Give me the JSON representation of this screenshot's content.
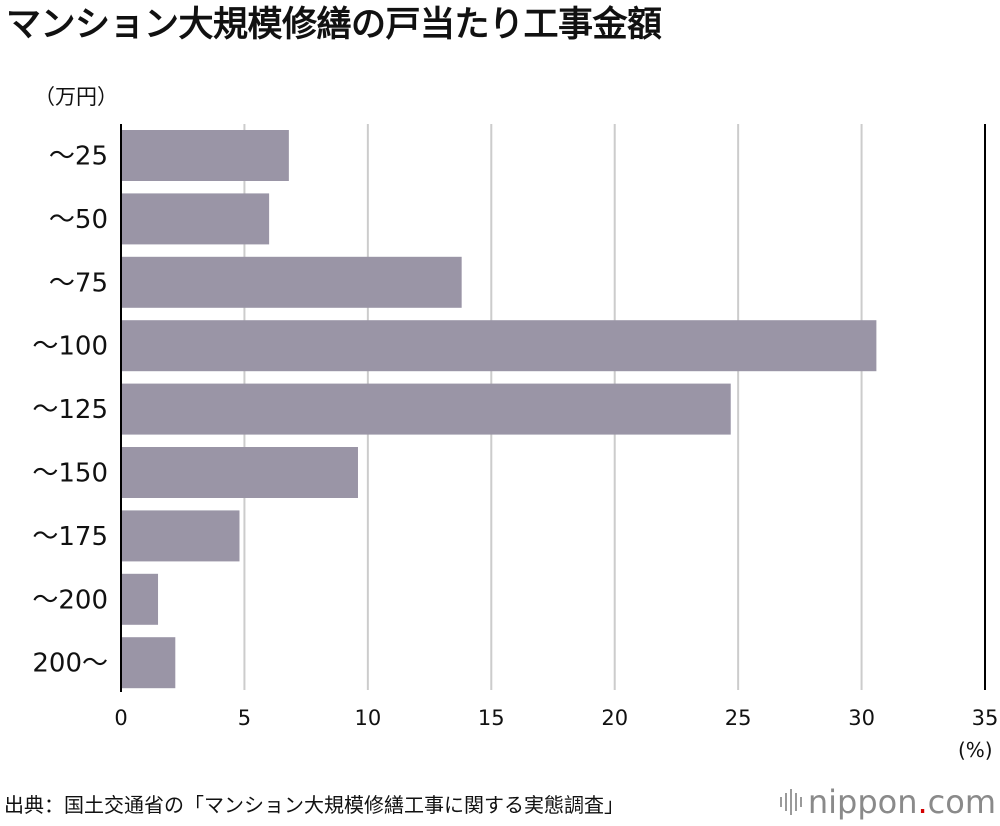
{
  "title": "マンション大規模修繕の戸当たり工事金額",
  "unit_label": "（万円）",
  "percent_label": "(%)",
  "source": "出典：国土交通省の「マンション大規模修繕工事に関する実態調査」",
  "logo": {
    "name": "nippon",
    "dot": ".",
    "tld": "com"
  },
  "colors": {
    "bar": "#9a95a6",
    "grid": "#cccccc",
    "axis": "#000000",
    "text": "#111111"
  },
  "chart_data": {
    "type": "bar",
    "orientation": "horizontal",
    "categories": [
      "～25",
      "～50",
      "～75",
      "～100",
      "～125",
      "～150",
      "～175",
      "～200",
      "200～"
    ],
    "values": [
      6.8,
      6.0,
      13.8,
      30.6,
      24.7,
      9.6,
      4.8,
      1.5,
      2.2
    ],
    "xlim": [
      0,
      35
    ],
    "xticks": [
      "0",
      "5",
      "10",
      "15",
      "20",
      "25",
      "30",
      "35"
    ],
    "grid": true
  }
}
